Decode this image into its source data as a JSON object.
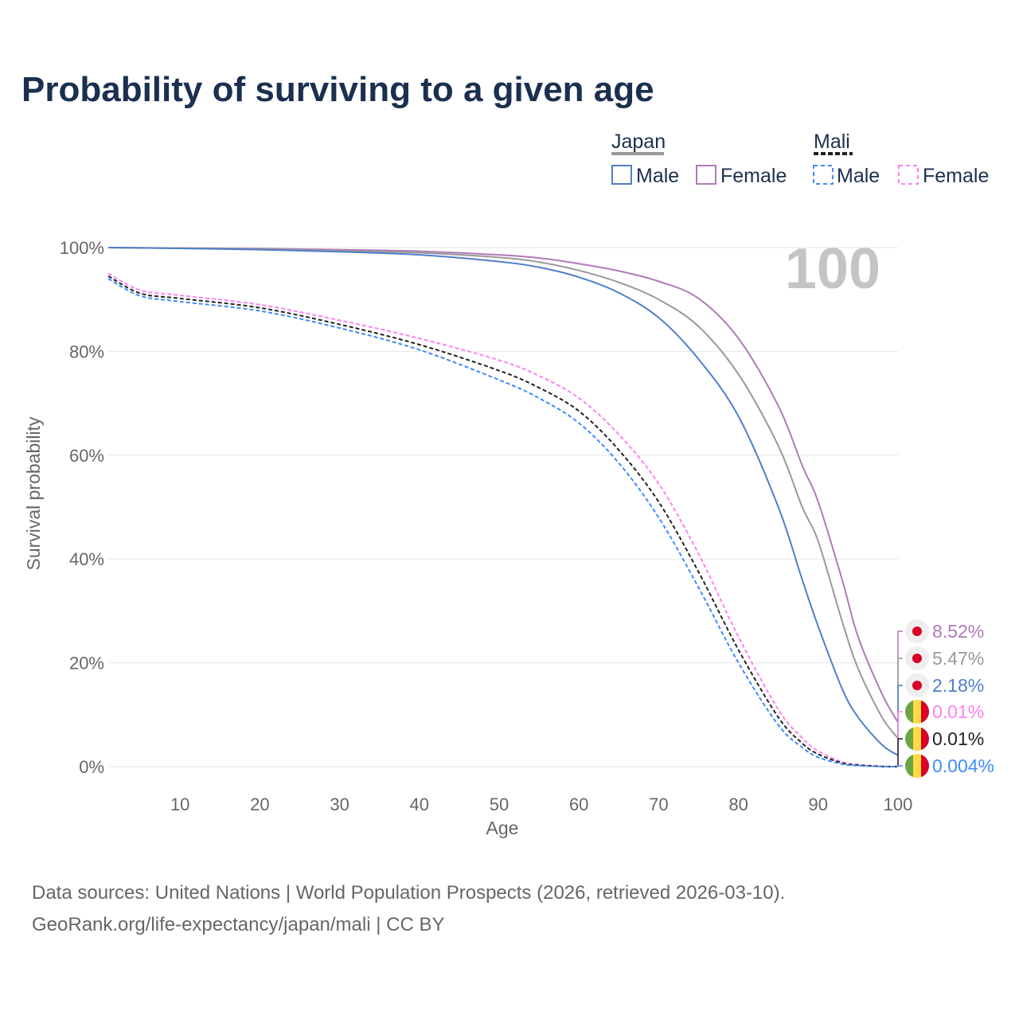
{
  "title": "Probability of surviving to a given age",
  "legend": {
    "groups": [
      {
        "name": "Japan",
        "items": [
          "Male",
          "Female"
        ]
      },
      {
        "name": "Mali",
        "items": [
          "Male",
          "Female"
        ]
      }
    ]
  },
  "year_marker": "100",
  "sources": [
    "Data sources: United Nations | World Population Prospects (2026, retrieved 2026-03-10).",
    "GeoRank.org/life-expectancy/japan/mali | CC BY"
  ],
  "chart_data": {
    "type": "line",
    "title": "Probability of surviving to a given age",
    "xlabel": "Age",
    "ylabel": "Survival probability",
    "xlim": [
      1,
      100
    ],
    "ylim": [
      0,
      100
    ],
    "xticks": [
      "10",
      "20",
      "30",
      "40",
      "50",
      "60",
      "70",
      "80",
      "90",
      "100"
    ],
    "yticks": [
      "0%",
      "20%",
      "40%",
      "60%",
      "80%",
      "100%"
    ],
    "grid": true,
    "x": [
      1,
      5,
      10,
      20,
      30,
      40,
      50,
      55,
      60,
      65,
      70,
      75,
      80,
      85,
      88,
      90,
      93,
      95,
      98,
      100
    ],
    "series": [
      {
        "name": "Japan Female",
        "color": "#b07ab8",
        "dash": false,
        "end_label": "8.52%",
        "values": [
          100,
          99.95,
          99.9,
          99.8,
          99.6,
          99.3,
          98.6,
          98,
          96.9,
          95.5,
          93.5,
          90.2,
          82.5,
          69.5,
          58,
          51,
          36,
          25,
          14,
          8.52
        ]
      },
      {
        "name": "Japan Total",
        "color": "#999999",
        "dash": false,
        "end_label": "5.47%",
        "values": [
          100,
          99.95,
          99.85,
          99.7,
          99.4,
          99,
          98.1,
          97.2,
          95.6,
          93.3,
          90,
          84.8,
          75.6,
          61.8,
          50,
          43.4,
          28,
          18.9,
          9.5,
          5.47
        ]
      },
      {
        "name": "Japan Male",
        "color": "#4f7fcb",
        "dash": false,
        "end_label": "2.18%",
        "values": [
          100,
          99.95,
          99.85,
          99.6,
          99.2,
          98.6,
          97.3,
          96.2,
          94.3,
          91.3,
          86.5,
          78.5,
          67.5,
          50,
          36,
          27,
          15,
          9.5,
          4.2,
          2.18
        ]
      },
      {
        "name": "Mali Female",
        "color": "#ff80f0",
        "dash": true,
        "end_label": "0.01%",
        "values": [
          95,
          91.8,
          90.8,
          89,
          86,
          82.5,
          78.3,
          75.3,
          71,
          64,
          54.5,
          41,
          25,
          11,
          5.5,
          3,
          0.9,
          0.4,
          0.05,
          0.01
        ]
      },
      {
        "name": "Mali Total",
        "color": "#222222",
        "dash": true,
        "end_label": "0.01%",
        "values": [
          94.5,
          91.2,
          90.2,
          88.4,
          85.2,
          81.3,
          76.3,
          73,
          68.5,
          61,
          51,
          37.5,
          22.5,
          9.5,
          4.5,
          2.4,
          0.7,
          0.3,
          0.04,
          0.01
        ]
      },
      {
        "name": "Mali Male",
        "color": "#3d8cff",
        "dash": true,
        "end_label": "0.004%",
        "values": [
          94,
          90.7,
          89.6,
          87.8,
          84.5,
          80.3,
          74.5,
          71,
          66.2,
          58.5,
          48,
          34.5,
          20,
          8,
          3.7,
          1.8,
          0.5,
          0.2,
          0.02,
          0.004
        ]
      }
    ]
  }
}
